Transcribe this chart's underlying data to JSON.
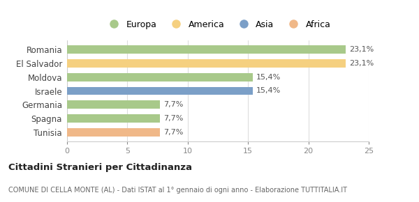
{
  "categories": [
    "Romania",
    "El Salvador",
    "Moldova",
    "Israele",
    "Germania",
    "Spagna",
    "Tunisia"
  ],
  "values": [
    23.1,
    23.1,
    15.4,
    15.4,
    7.7,
    7.7,
    7.7
  ],
  "labels": [
    "23,1%",
    "23,1%",
    "15,4%",
    "15,4%",
    "7,7%",
    "7,7%",
    "7,7%"
  ],
  "colors": [
    "#a8c98a",
    "#f5d080",
    "#a8c98a",
    "#7b9fc7",
    "#a8c98a",
    "#a8c98a",
    "#f0b888"
  ],
  "legend_labels": [
    "Europa",
    "America",
    "Asia",
    "Africa"
  ],
  "legend_colors": [
    "#a8c98a",
    "#f5d080",
    "#7b9fc7",
    "#f0b888"
  ],
  "xlim": [
    0,
    25
  ],
  "xticks": [
    0,
    5,
    10,
    15,
    20,
    25
  ],
  "title_main": "Cittadini Stranieri per Cittadinanza",
  "title_sub": "COMUNE DI CELLA MONTE (AL) - Dati ISTAT al 1° gennaio di ogni anno - Elaborazione TUTTITALIA.IT",
  "background_color": "#ffffff",
  "grid_color": "#dddddd",
  "bar_height": 0.6
}
